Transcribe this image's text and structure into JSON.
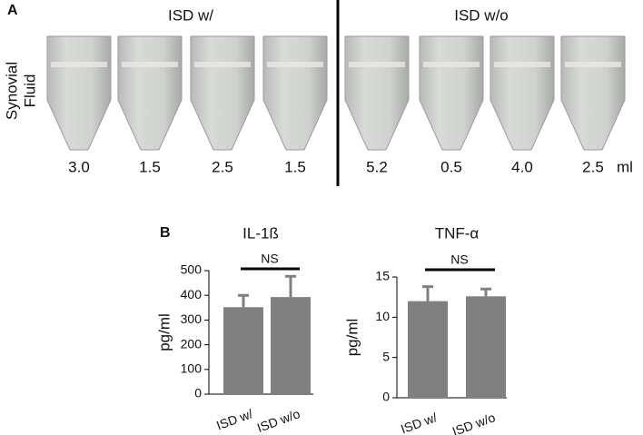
{
  "panel_a": {
    "label": "A",
    "row_label": [
      "Synovial",
      "Fluid"
    ],
    "unit": "ml",
    "groups": [
      {
        "title": "ISD w/",
        "volumes": [
          "3.0",
          "1.5",
          "2.5",
          "1.5"
        ]
      },
      {
        "title": "ISD w/o",
        "volumes": [
          "5.2",
          "0.5",
          "4.0",
          "2.5"
        ]
      }
    ]
  },
  "panel_b_label": "B",
  "chart_data": [
    {
      "type": "bar",
      "title": "IL-1ß",
      "y_label": "pg/ml",
      "categories": [
        "ISD w/",
        "ISD w/o"
      ],
      "values": [
        352,
        393
      ],
      "errors": [
        48,
        84
      ],
      "color": "#808080",
      "ylim": [
        0,
        500
      ],
      "yticks": [
        0,
        100,
        200,
        300,
        400,
        500
      ],
      "annotation": "NS"
    },
    {
      "type": "bar",
      "title": "TNF-α",
      "y_label": "pg/ml",
      "categories": [
        "ISD w/",
        "ISD w/o"
      ],
      "values": [
        12.0,
        12.6
      ],
      "errors": [
        1.8,
        0.9
      ],
      "color": "#808080",
      "ylim": [
        0,
        15
      ],
      "yticks": [
        0,
        5,
        10,
        15
      ],
      "annotation": "NS"
    }
  ]
}
